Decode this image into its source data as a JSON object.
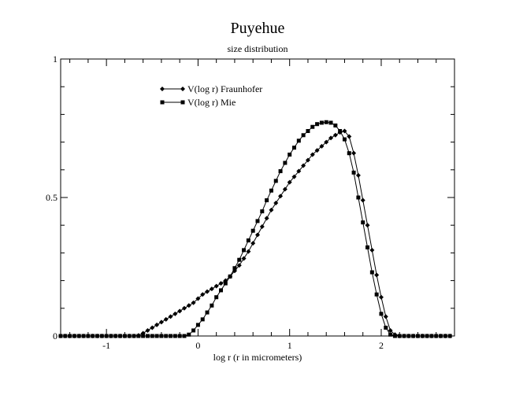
{
  "chart_data": {
    "type": "line",
    "title": "Puyehue",
    "subtitle": "size distribution",
    "xlabel": "log r (r in micrometers)",
    "ylabel": "",
    "xlim": [
      -1.5,
      2.8
    ],
    "ylim": [
      0,
      1
    ],
    "xticks": [
      -1,
      0,
      1,
      2
    ],
    "xtick_labels": [
      "-1",
      "0",
      "1",
      "2"
    ],
    "yticks": [
      0,
      0.5,
      1
    ],
    "ytick_labels": [
      "0",
      "0.5",
      "1"
    ],
    "grid": false,
    "legend_position": "top-left",
    "series": [
      {
        "name": "V(log r) Fraunhofer",
        "marker": "diamond",
        "color": "#000000",
        "x": [
          -1.5,
          -1.45,
          -1.4,
          -1.35,
          -1.3,
          -1.25,
          -1.2,
          -1.15,
          -1.1,
          -1.05,
          -1.0,
          -0.95,
          -0.9,
          -0.85,
          -0.8,
          -0.75,
          -0.7,
          -0.65,
          -0.6,
          -0.55,
          -0.5,
          -0.45,
          -0.4,
          -0.35,
          -0.3,
          -0.25,
          -0.2,
          -0.15,
          -0.1,
          -0.05,
          0.0,
          0.05,
          0.1,
          0.15,
          0.2,
          0.25,
          0.3,
          0.35,
          0.4,
          0.45,
          0.5,
          0.55,
          0.6,
          0.65,
          0.7,
          0.75,
          0.8,
          0.85,
          0.9,
          0.95,
          1.0,
          1.05,
          1.1,
          1.15,
          1.2,
          1.25,
          1.3,
          1.35,
          1.4,
          1.45,
          1.5,
          1.55,
          1.6,
          1.65,
          1.7,
          1.75,
          1.8,
          1.85,
          1.9,
          1.95,
          2.0,
          2.05,
          2.1,
          2.15,
          2.2,
          2.25,
          2.3,
          2.35,
          2.4,
          2.45,
          2.5,
          2.55,
          2.6,
          2.65,
          2.7,
          2.75
        ],
        "y": [
          0,
          0,
          0,
          0,
          0,
          0,
          0,
          0,
          0,
          0,
          0,
          0,
          0,
          0,
          0,
          0,
          0,
          0.002,
          0.01,
          0.02,
          0.03,
          0.04,
          0.05,
          0.06,
          0.07,
          0.08,
          0.09,
          0.1,
          0.11,
          0.12,
          0.135,
          0.15,
          0.16,
          0.17,
          0.18,
          0.19,
          0.2,
          0.215,
          0.235,
          0.255,
          0.28,
          0.305,
          0.335,
          0.365,
          0.395,
          0.425,
          0.455,
          0.48,
          0.505,
          0.53,
          0.555,
          0.575,
          0.595,
          0.615,
          0.635,
          0.655,
          0.67,
          0.685,
          0.7,
          0.715,
          0.725,
          0.735,
          0.74,
          0.72,
          0.66,
          0.58,
          0.49,
          0.4,
          0.31,
          0.22,
          0.14,
          0.07,
          0.02,
          0.005,
          0,
          0,
          0,
          0,
          0,
          0,
          0,
          0,
          0,
          0,
          0,
          0
        ]
      },
      {
        "name": "V(log r) Mie",
        "marker": "square",
        "color": "#000000",
        "x": [
          -1.5,
          -1.45,
          -1.4,
          -1.35,
          -1.3,
          -1.25,
          -1.2,
          -1.15,
          -1.1,
          -1.05,
          -1.0,
          -0.95,
          -0.9,
          -0.85,
          -0.8,
          -0.75,
          -0.7,
          -0.65,
          -0.6,
          -0.55,
          -0.5,
          -0.45,
          -0.4,
          -0.35,
          -0.3,
          -0.25,
          -0.2,
          -0.15,
          -0.1,
          -0.05,
          0.0,
          0.05,
          0.1,
          0.15,
          0.2,
          0.25,
          0.3,
          0.35,
          0.4,
          0.45,
          0.5,
          0.55,
          0.6,
          0.65,
          0.7,
          0.75,
          0.8,
          0.85,
          0.9,
          0.95,
          1.0,
          1.05,
          1.1,
          1.15,
          1.2,
          1.25,
          1.3,
          1.35,
          1.4,
          1.45,
          1.5,
          1.55,
          1.6,
          1.65,
          1.7,
          1.75,
          1.8,
          1.85,
          1.9,
          1.95,
          2.0,
          2.05,
          2.1,
          2.15,
          2.2,
          2.25,
          2.3,
          2.35,
          2.4,
          2.45,
          2.5,
          2.55,
          2.6,
          2.65,
          2.7,
          2.75
        ],
        "y": [
          0,
          0,
          0,
          0,
          0,
          0,
          0,
          0,
          0,
          0,
          0,
          0,
          0,
          0,
          0,
          0,
          0,
          0,
          0,
          0,
          0,
          0,
          0,
          0,
          0,
          0,
          0,
          0,
          0.005,
          0.02,
          0.04,
          0.06,
          0.085,
          0.11,
          0.14,
          0.165,
          0.19,
          0.215,
          0.245,
          0.275,
          0.31,
          0.345,
          0.38,
          0.415,
          0.45,
          0.49,
          0.525,
          0.56,
          0.595,
          0.625,
          0.655,
          0.68,
          0.705,
          0.725,
          0.74,
          0.755,
          0.765,
          0.77,
          0.772,
          0.77,
          0.76,
          0.74,
          0.71,
          0.66,
          0.59,
          0.5,
          0.41,
          0.32,
          0.23,
          0.15,
          0.08,
          0.03,
          0.005,
          0,
          0,
          0,
          0,
          0,
          0,
          0,
          0,
          0,
          0,
          0,
          0,
          0
        ]
      }
    ]
  }
}
